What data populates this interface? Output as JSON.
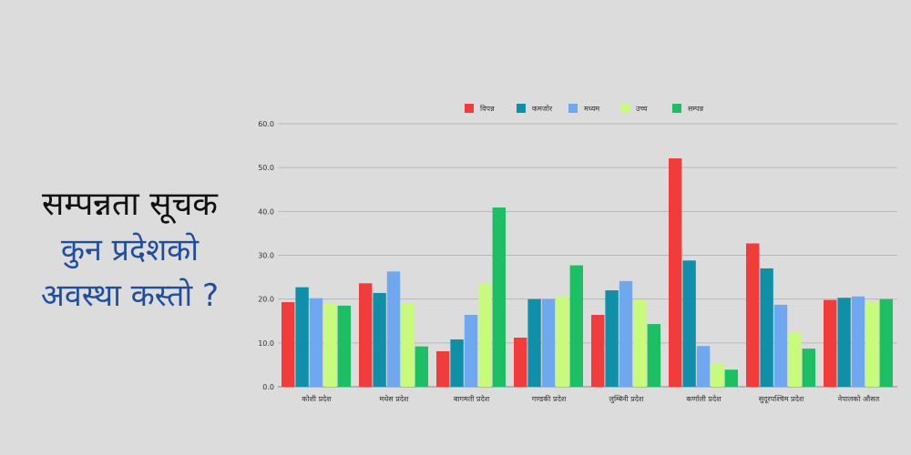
{
  "headline": {
    "line1": "सम्पन्नता सूचक",
    "line2": "कुन प्रदेशको",
    "line3": "अवस्था कस्तो ?"
  },
  "chart_data": {
    "type": "bar",
    "title": "",
    "xlabel": "",
    "ylabel": "",
    "ylim": [
      0,
      60
    ],
    "yticks": [
      "0.0",
      "10.0",
      "20.0",
      "30.0",
      "40.0",
      "50.0",
      "60.0"
    ],
    "grid": true,
    "legend_position": "top-center",
    "categories": [
      "कोशी प्रदेश",
      "मधेस प्रदेश",
      "बागमती प्रदेश",
      "गण्डकी प्रदेश",
      "लुम्बिनी प्रदेश",
      "कर्णाली प्रदेश",
      "सुदूरपश्चिम प्रदेश",
      "नेपालको औसत"
    ],
    "series": [
      {
        "name": "विपन्न",
        "color": "#f23b3b",
        "values": [
          19.3,
          23.6,
          8.1,
          11.2,
          16.4,
          52.1,
          32.7,
          19.8
        ]
      },
      {
        "name": "कमजोर",
        "color": "#0f8fa8",
        "values": [
          22.7,
          21.4,
          10.8,
          20.0,
          22.0,
          28.8,
          27.0,
          20.3
        ]
      },
      {
        "name": "मध्यम",
        "color": "#6fa8ef",
        "values": [
          20.2,
          26.3,
          16.4,
          20.0,
          24.1,
          9.3,
          18.7,
          20.6
        ]
      },
      {
        "name": "उच्च",
        "color": "#c8fb7b",
        "values": [
          19.0,
          19.1,
          23.4,
          20.6,
          19.8,
          5.4,
          12.5,
          19.3
        ]
      },
      {
        "name": "सम्पन्न",
        "color": "#1dbf63",
        "values": [
          18.5,
          9.2,
          40.9,
          27.7,
          14.3,
          3.9,
          8.7,
          20.0
        ]
      }
    ]
  }
}
